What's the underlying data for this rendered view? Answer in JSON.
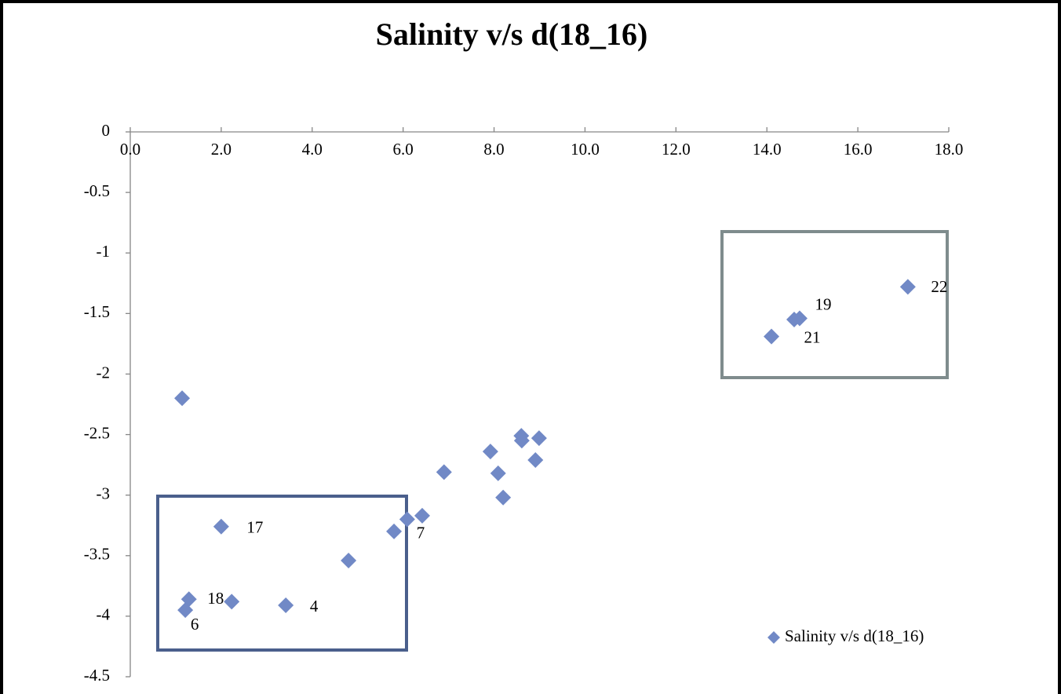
{
  "chart_data": {
    "type": "scatter",
    "title": "Salinity v/s d(18_16)",
    "series": [
      {
        "name": "Salinity v/s d(18_16)",
        "color": "#7189c6",
        "x": [
          1.14,
          2.0,
          1.29,
          1.21,
          2.23,
          3.42,
          4.8,
          5.8,
          6.09,
          6.42,
          6.9,
          7.92,
          8.09,
          8.2,
          8.6,
          8.61,
          8.99,
          8.91,
          14.1,
          14.6,
          14.72,
          17.1
        ],
        "values": [
          -2.2,
          -3.26,
          -3.86,
          -3.95,
          -3.88,
          -3.91,
          -3.54,
          -3.3,
          -3.2,
          -3.17,
          -2.81,
          -2.64,
          -2.82,
          -3.02,
          -2.51,
          -2.55,
          -2.53,
          -2.71,
          -1.69,
          -1.55,
          -1.54,
          -1.28
        ],
        "labels": [
          null,
          "17",
          "18",
          "6",
          null,
          "4",
          null,
          null,
          null,
          "7",
          null,
          null,
          null,
          null,
          null,
          null,
          null,
          null,
          "21",
          null,
          "19",
          "22"
        ]
      }
    ],
    "xlim": [
      0,
      18
    ],
    "xticks": [
      {
        "value": 0,
        "label": "0.0"
      },
      {
        "value": 2,
        "label": "2.0"
      },
      {
        "value": 4,
        "label": "4.0"
      },
      {
        "value": 6,
        "label": "6.0"
      },
      {
        "value": 8,
        "label": "8.0"
      },
      {
        "value": 10,
        "label": "10.0"
      },
      {
        "value": 12,
        "label": "12.0"
      },
      {
        "value": 14,
        "label": "14.0"
      },
      {
        "value": 16,
        "label": "16.0"
      },
      {
        "value": 18,
        "label": "18.0"
      }
    ],
    "ylim": [
      -4.5,
      0
    ],
    "yticks": [
      0,
      -0.5,
      -1,
      -1.5,
      -2,
      -2.5,
      -3,
      -3.5,
      -4,
      -4.5
    ],
    "legend": "bottom-right"
  }
}
